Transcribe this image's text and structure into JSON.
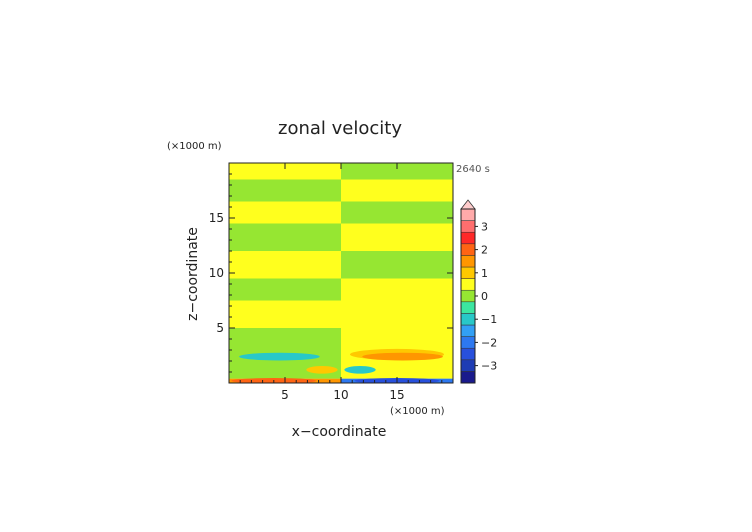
{
  "chart_data": {
    "type": "heatmap",
    "title": "zonal velocity",
    "time_label": "2640 s",
    "xlabel": "x−coordinate",
    "ylabel": "z−coordinate",
    "x_unit": "(×1000 m)",
    "y_unit": "(×1000 m)",
    "xlim": [
      0,
      20
    ],
    "ylim": [
      0,
      20
    ],
    "x_ticks": [
      5,
      10,
      15
    ],
    "y_ticks": [
      5,
      10,
      15
    ],
    "colorbar": {
      "levels": [
        {
          "value": -3.5,
          "color": "#1a1a8c"
        },
        {
          "value": -3.0,
          "color": "#1e3cb4"
        },
        {
          "value": -2.5,
          "color": "#2850dc"
        },
        {
          "value": -2.0,
          "color": "#2d78f0"
        },
        {
          "value": -1.5,
          "color": "#32a0f5"
        },
        {
          "value": -1.0,
          "color": "#28c8c8"
        },
        {
          "value": -0.5,
          "color": "#3ce6a0"
        },
        {
          "value": 0.0,
          "color": "#96e632"
        },
        {
          "value": 0.5,
          "color": "#ffff1e"
        },
        {
          "value": 1.0,
          "color": "#ffc800"
        },
        {
          "value": 1.5,
          "color": "#ff9600"
        },
        {
          "value": 2.0,
          "color": "#ff6414"
        },
        {
          "value": 2.5,
          "color": "#ff2828"
        },
        {
          "value": 3.0,
          "color": "#ff6e6e"
        },
        {
          "value": 3.5,
          "color": "#ffaaaa"
        }
      ],
      "tick_labels": [
        "3",
        "2",
        "1",
        "0",
        "−1",
        "−2",
        "−3"
      ],
      "extend_top_color": "#ffcccc"
    },
    "bands": [
      {
        "z": [
          0.0,
          0.4
        ],
        "left": "#ff9600",
        "right": "#2d78f0"
      },
      {
        "z": [
          0.4,
          5.0
        ],
        "left": "#96e632",
        "right": "#ffff1e"
      },
      {
        "z": [
          5.0,
          7.5
        ],
        "left": "#ffff1e",
        "right": "#ffff1e"
      },
      {
        "z": [
          7.5,
          9.5
        ],
        "left": "#96e632",
        "right": "#ffff1e"
      },
      {
        "z": [
          9.5,
          12.0
        ],
        "left": "#ffff1e",
        "right": "#96e632"
      },
      {
        "z": [
          12.0,
          14.5
        ],
        "left": "#96e632",
        "right": "#ffff1e"
      },
      {
        "z": [
          14.5,
          16.5
        ],
        "left": "#ffff1e",
        "right": "#96e632"
      },
      {
        "z": [
          16.5,
          18.5
        ],
        "left": "#96e632",
        "right": "#ffff1e"
      },
      {
        "z": [
          18.5,
          20.0
        ],
        "left": "#ffff1e",
        "right": "#96e632"
      }
    ],
    "features": [
      {
        "x": 5.0,
        "z": 2.6,
        "rx": 4.2,
        "rz": 0.5,
        "color": "#96e632"
      },
      {
        "x": 4.5,
        "z": 2.4,
        "rx": 3.6,
        "rz": 0.35,
        "color": "#28c8c8"
      },
      {
        "x": 15.0,
        "z": 2.6,
        "rx": 4.2,
        "rz": 0.5,
        "color": "#ffc800"
      },
      {
        "x": 15.5,
        "z": 2.4,
        "rx": 3.6,
        "rz": 0.35,
        "color": "#ff9600"
      },
      {
        "x": 8.3,
        "z": 1.2,
        "rx": 1.4,
        "rz": 0.35,
        "color": "#ffc800"
      },
      {
        "x": 11.7,
        "z": 1.2,
        "rx": 1.4,
        "rz": 0.35,
        "color": "#28c8c8"
      },
      {
        "x": 4.0,
        "z": 0.2,
        "rx": 3.8,
        "rz": 0.25,
        "color": "#ff6414"
      },
      {
        "x": 15.0,
        "z": 0.2,
        "rx": 3.8,
        "rz": 0.25,
        "color": "#2850dc"
      }
    ]
  }
}
